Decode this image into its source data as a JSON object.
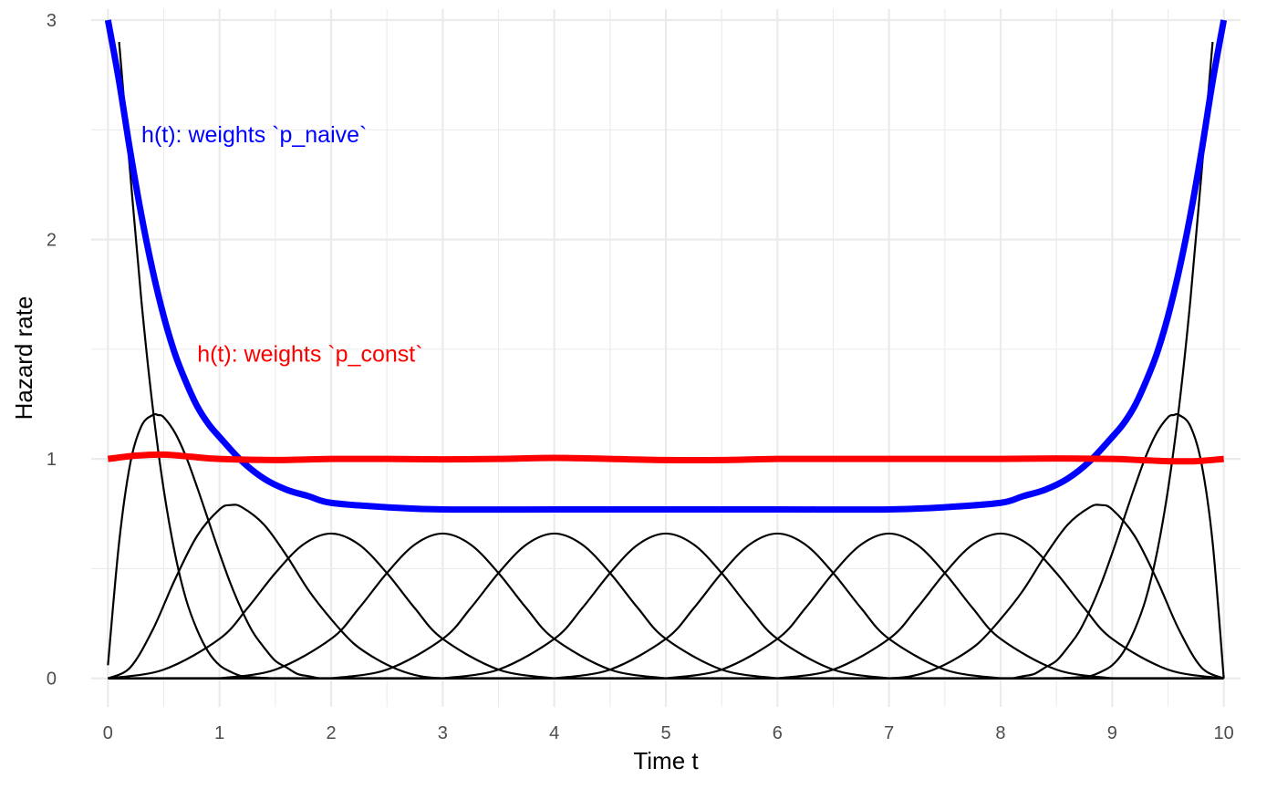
{
  "chart_data": {
    "type": "line",
    "title": "",
    "xlabel": "Time t",
    "ylabel": "Hazard rate",
    "xlim": [
      -0.15,
      10.15
    ],
    "ylim": [
      -0.13,
      3.05
    ],
    "x_ticks": [
      "0",
      "1",
      "2",
      "3",
      "4",
      "5",
      "6",
      "7",
      "8",
      "9",
      "10"
    ],
    "y_ticks": [
      "0",
      "1",
      "2",
      "3"
    ],
    "grid": true,
    "background": "#ffffff",
    "grid_color": "#ebebeb",
    "basis_color": "#000000",
    "annotations": [
      {
        "text": "h(t): weights `p_naive`",
        "x": 0.3,
        "y": 2.48,
        "color": "#0000ff"
      },
      {
        "text": "h(t): weights `p_const`",
        "x": 0.8,
        "y": 1.48,
        "color": "#ff0000"
      }
    ],
    "basis_functions": [
      {
        "x": [
          0.1,
          0.2,
          0.3,
          0.4,
          0.5,
          0.6,
          0.7,
          0.8,
          0.9,
          1.0,
          1.1,
          1.2,
          1.3,
          1.4,
          1.5,
          1.6,
          1.7,
          1.8,
          1.9,
          2.0
        ],
        "y": [
          2.9,
          2.3,
          1.72,
          1.24,
          0.86,
          0.57,
          0.36,
          0.22,
          0.12,
          0.06,
          0.03,
          0.01,
          0.005,
          0.002,
          0.0,
          0.0,
          0.0,
          0.0,
          0.0,
          0.0
        ]
      },
      {
        "x": [
          0.0,
          0.1,
          0.2,
          0.3,
          0.4,
          0.45,
          0.5,
          0.6,
          0.7,
          0.8,
          0.9,
          1.0,
          1.1,
          1.2,
          1.3,
          1.4,
          1.5,
          1.6,
          1.7,
          1.8,
          1.9,
          2.0
        ],
        "y": [
          0.06,
          0.62,
          0.98,
          1.15,
          1.2,
          1.2,
          1.19,
          1.12,
          1.01,
          0.87,
          0.72,
          0.57,
          0.43,
          0.31,
          0.21,
          0.14,
          0.08,
          0.05,
          0.02,
          0.01,
          0.0,
          0.0
        ]
      },
      {
        "x": [
          0.0,
          0.2,
          0.4,
          0.6,
          0.8,
          1.0,
          1.1,
          1.2,
          1.4,
          1.6,
          1.8,
          2.0,
          2.2,
          2.4,
          2.6,
          2.8,
          3.0
        ],
        "y": [
          0.0,
          0.05,
          0.22,
          0.45,
          0.65,
          0.77,
          0.79,
          0.78,
          0.7,
          0.56,
          0.4,
          0.27,
          0.16,
          0.09,
          0.04,
          0.01,
          0.0
        ]
      },
      {
        "x": [
          0.0,
          0.5,
          1.0,
          1.25,
          1.5,
          1.75,
          2.0,
          2.25,
          2.5,
          2.75,
          3.0,
          3.5,
          4.0
        ],
        "y": [
          0.0,
          0.04,
          0.18,
          0.32,
          0.48,
          0.61,
          0.66,
          0.61,
          0.48,
          0.32,
          0.18,
          0.04,
          0.0
        ]
      },
      {
        "x": [
          1.0,
          1.5,
          2.0,
          2.25,
          2.5,
          2.75,
          3.0,
          3.25,
          3.5,
          3.75,
          4.0,
          4.5,
          5.0
        ],
        "y": [
          0.0,
          0.04,
          0.18,
          0.32,
          0.48,
          0.61,
          0.66,
          0.61,
          0.48,
          0.32,
          0.18,
          0.04,
          0.0
        ]
      },
      {
        "x": [
          2.0,
          2.5,
          3.0,
          3.25,
          3.5,
          3.75,
          4.0,
          4.25,
          4.5,
          4.75,
          5.0,
          5.5,
          6.0
        ],
        "y": [
          0.0,
          0.04,
          0.18,
          0.32,
          0.48,
          0.61,
          0.66,
          0.61,
          0.48,
          0.32,
          0.18,
          0.04,
          0.0
        ]
      },
      {
        "x": [
          3.0,
          3.5,
          4.0,
          4.25,
          4.5,
          4.75,
          5.0,
          5.25,
          5.5,
          5.75,
          6.0,
          6.5,
          7.0
        ],
        "y": [
          0.0,
          0.04,
          0.18,
          0.32,
          0.48,
          0.61,
          0.66,
          0.61,
          0.48,
          0.32,
          0.18,
          0.04,
          0.0
        ]
      },
      {
        "x": [
          4.0,
          4.5,
          5.0,
          5.25,
          5.5,
          5.75,
          6.0,
          6.25,
          6.5,
          6.75,
          7.0,
          7.5,
          8.0
        ],
        "y": [
          0.0,
          0.04,
          0.18,
          0.32,
          0.48,
          0.61,
          0.66,
          0.61,
          0.48,
          0.32,
          0.18,
          0.04,
          0.0
        ]
      },
      {
        "x": [
          5.0,
          5.5,
          6.0,
          6.25,
          6.5,
          6.75,
          7.0,
          7.25,
          7.5,
          7.75,
          8.0,
          8.5,
          9.0
        ],
        "y": [
          0.0,
          0.04,
          0.18,
          0.32,
          0.48,
          0.61,
          0.66,
          0.61,
          0.48,
          0.32,
          0.18,
          0.04,
          0.0
        ]
      },
      {
        "x": [
          6.0,
          6.5,
          7.0,
          7.25,
          7.5,
          7.75,
          8.0,
          8.25,
          8.5,
          8.75,
          9.0,
          9.5,
          10.0
        ],
        "y": [
          0.0,
          0.04,
          0.18,
          0.32,
          0.48,
          0.61,
          0.66,
          0.61,
          0.48,
          0.32,
          0.18,
          0.04,
          0.0
        ]
      },
      {
        "x": [
          7.0,
          7.2,
          7.4,
          7.6,
          7.8,
          8.0,
          8.2,
          8.4,
          8.6,
          8.8,
          8.9,
          9.0,
          9.2,
          9.4,
          9.6,
          9.8,
          10.0
        ],
        "y": [
          0.0,
          0.01,
          0.04,
          0.09,
          0.16,
          0.27,
          0.4,
          0.56,
          0.7,
          0.78,
          0.79,
          0.77,
          0.65,
          0.45,
          0.22,
          0.05,
          0.0
        ]
      },
      {
        "x": [
          8.0,
          8.1,
          8.2,
          8.3,
          8.4,
          8.5,
          8.6,
          8.7,
          8.8,
          8.9,
          9.0,
          9.1,
          9.2,
          9.3,
          9.4,
          9.5,
          9.55,
          9.6,
          9.7,
          9.8,
          9.9,
          10.0
        ],
        "y": [
          0.0,
          0.0,
          0.01,
          0.02,
          0.05,
          0.08,
          0.14,
          0.21,
          0.31,
          0.43,
          0.57,
          0.72,
          0.87,
          1.01,
          1.12,
          1.19,
          1.2,
          1.2,
          1.15,
          0.98,
          0.62,
          0.0
        ]
      },
      {
        "x": [
          8.0,
          8.1,
          8.2,
          8.3,
          8.4,
          8.5,
          8.6,
          8.7,
          8.8,
          8.9,
          9.0,
          9.1,
          9.2,
          9.3,
          9.4,
          9.5,
          9.6,
          9.7,
          9.8,
          9.9
        ],
        "y": [
          0.0,
          0.0,
          0.0,
          0.0,
          0.0,
          0.0,
          0.002,
          0.005,
          0.01,
          0.03,
          0.06,
          0.12,
          0.22,
          0.36,
          0.57,
          0.86,
          1.24,
          1.72,
          2.3,
          2.9
        ]
      }
    ],
    "series": [
      {
        "color": "#0000ff",
        "x": [
          0.0,
          0.1,
          0.2,
          0.3,
          0.4,
          0.5,
          0.6,
          0.7,
          0.8,
          0.9,
          1.0,
          1.2,
          1.4,
          1.6,
          1.8,
          2.0,
          2.5,
          3.0,
          4.0,
          5.0,
          6.0,
          7.0,
          7.5,
          8.0,
          8.2,
          8.4,
          8.6,
          8.8,
          9.0,
          9.1,
          9.2,
          9.3,
          9.4,
          9.5,
          9.6,
          9.7,
          9.8,
          9.9,
          10.0
        ],
        "y": [
          3.0,
          2.72,
          2.4,
          2.11,
          1.86,
          1.65,
          1.48,
          1.35,
          1.24,
          1.16,
          1.1,
          0.99,
          0.91,
          0.86,
          0.83,
          0.8,
          0.78,
          0.77,
          0.77,
          0.77,
          0.77,
          0.77,
          0.78,
          0.8,
          0.83,
          0.86,
          0.91,
          0.99,
          1.1,
          1.16,
          1.24,
          1.35,
          1.48,
          1.65,
          1.86,
          2.11,
          2.4,
          2.72,
          3.0
        ]
      },
      {
        "color": "#ff0000",
        "x": [
          0.0,
          0.25,
          0.5,
          0.75,
          1.0,
          1.5,
          2.0,
          2.5,
          3.0,
          3.5,
          4.0,
          4.5,
          5.0,
          5.5,
          6.0,
          6.5,
          7.0,
          7.5,
          8.0,
          8.5,
          9.0,
          9.25,
          9.5,
          9.75,
          10.0
        ],
        "y": [
          1.0,
          1.015,
          1.02,
          1.01,
          1.0,
          0.995,
          1.0,
          1.0,
          0.998,
          1.0,
          1.005,
          1.0,
          0.995,
          0.995,
          1.0,
          1.0,
          1.0,
          1.0,
          1.0,
          1.002,
          1.0,
          0.995,
          0.99,
          0.99,
          1.0
        ]
      }
    ]
  }
}
